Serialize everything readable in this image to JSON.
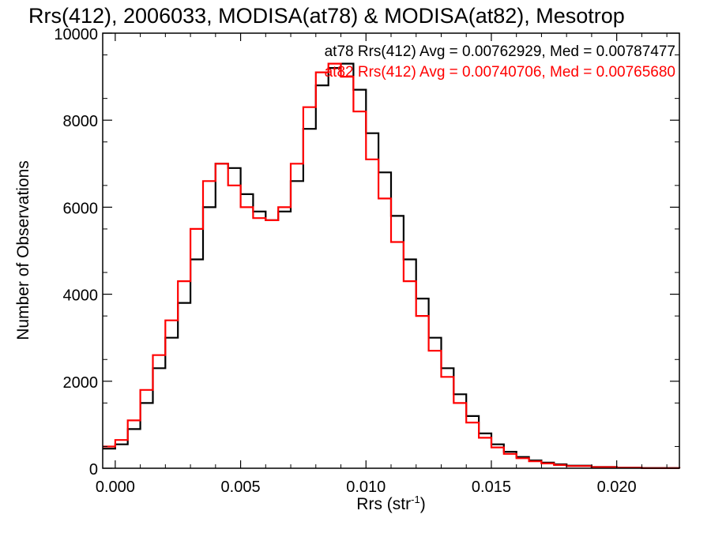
{
  "chart_data": {
    "type": "line",
    "step": true,
    "title": "Rrs(412), 2006033, MODISA(at78) & MODISA(at82), Mesotrop",
    "xlabel": "Rrs (str",
    "xlabel_sup": "-1",
    "xlabel_tail": ")",
    "ylabel": "Number of Observations",
    "xlim": [
      -0.0005,
      0.0225
    ],
    "ylim": [
      0,
      10000
    ],
    "x_ticks": [
      0.0,
      0.005,
      0.01,
      0.015,
      0.02
    ],
    "x_tick_labels": [
      "0.000",
      "0.005",
      "0.010",
      "0.015",
      "0.020"
    ],
    "y_ticks": [
      0,
      2000,
      4000,
      6000,
      8000,
      10000
    ],
    "y_tick_labels": [
      "0",
      "2000",
      "4000",
      "6000",
      "8000",
      "10000"
    ],
    "grid": false,
    "legend_placement": "top-right",
    "annotations": [
      {
        "text": "at78 Rrs(412) Avg = 0.00762929, Med = 0.00787477",
        "color": "#000000"
      },
      {
        "text": "at82 Rrs(412) Avg = 0.00740706, Med = 0.00765680",
        "color": "#ff0000"
      }
    ],
    "series": [
      {
        "color": "#000000",
        "x": [
          -0.0005,
          0.0,
          0.0005,
          0.001,
          0.0015,
          0.002,
          0.0025,
          0.003,
          0.0035,
          0.004,
          0.0045,
          0.005,
          0.0055,
          0.006,
          0.0065,
          0.007,
          0.0075,
          0.008,
          0.0085,
          0.009,
          0.0095,
          0.01,
          0.0105,
          0.011,
          0.0115,
          0.012,
          0.0125,
          0.013,
          0.0135,
          0.014,
          0.0145,
          0.015,
          0.0155,
          0.016,
          0.0165,
          0.017,
          0.0175,
          0.018,
          0.019,
          0.02,
          0.021,
          0.0225
        ],
        "y": [
          450,
          550,
          900,
          1500,
          2300,
          3000,
          3800,
          4800,
          6000,
          7000,
          6900,
          6300,
          5900,
          5700,
          5900,
          6600,
          7800,
          8800,
          9200,
          9300,
          8700,
          7700,
          6800,
          5800,
          4800,
          3900,
          3000,
          2300,
          1700,
          1200,
          800,
          550,
          380,
          260,
          180,
          130,
          90,
          60,
          30,
          15,
          5,
          0
        ]
      },
      {
        "color": "#ff0000",
        "x": [
          -0.0005,
          0.0,
          0.0005,
          0.001,
          0.0015,
          0.002,
          0.0025,
          0.003,
          0.0035,
          0.004,
          0.0045,
          0.005,
          0.0055,
          0.006,
          0.0065,
          0.007,
          0.0075,
          0.008,
          0.0085,
          0.009,
          0.0095,
          0.01,
          0.0105,
          0.011,
          0.0115,
          0.012,
          0.0125,
          0.013,
          0.0135,
          0.014,
          0.0145,
          0.015,
          0.0155,
          0.016,
          0.0165,
          0.017,
          0.0175,
          0.018,
          0.019,
          0.02,
          0.021,
          0.0225
        ],
        "y": [
          500,
          650,
          1100,
          1800,
          2600,
          3400,
          4300,
          5500,
          6600,
          7000,
          6500,
          6000,
          5750,
          5700,
          6000,
          7000,
          8300,
          9100,
          9300,
          9000,
          8200,
          7100,
          6200,
          5200,
          4300,
          3500,
          2700,
          2100,
          1500,
          1050,
          700,
          480,
          330,
          230,
          160,
          110,
          75,
          50,
          25,
          12,
          4,
          0
        ]
      }
    ]
  }
}
